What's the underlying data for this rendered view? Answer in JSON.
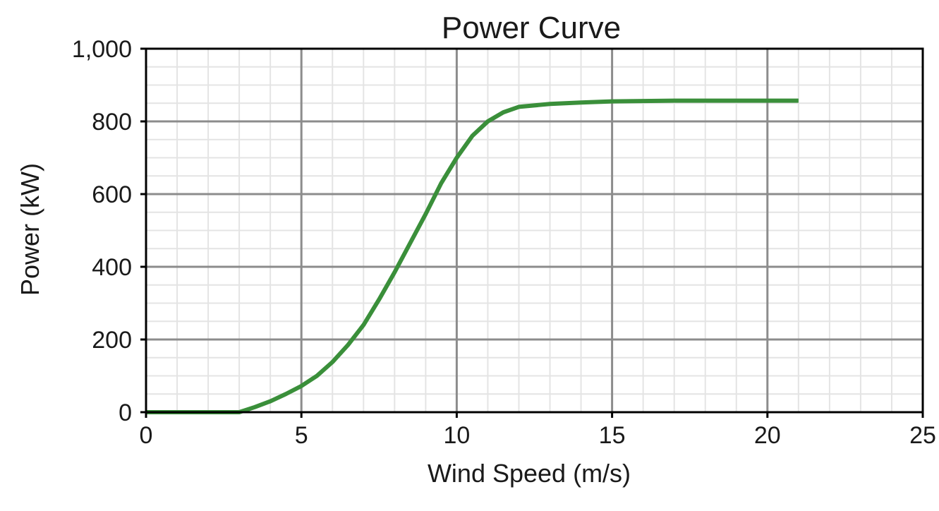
{
  "chart_data": {
    "type": "line",
    "title": "Power Curve",
    "xlabel": "Wind Speed (m/s)",
    "ylabel": "Power (kW)",
    "xlim": [
      0,
      25
    ],
    "ylim": [
      0,
      1000
    ],
    "x_ticks": [
      0,
      5,
      10,
      15,
      20,
      25
    ],
    "y_ticks": [
      0,
      200,
      400,
      600,
      800,
      1000
    ],
    "x_tick_labels": [
      "0",
      "5",
      "10",
      "15",
      "20",
      "25"
    ],
    "y_tick_labels": [
      "0",
      "200",
      "400",
      "600",
      "800",
      "1,000"
    ],
    "grid": true,
    "minor_grid": true,
    "legend": "none",
    "series": [
      {
        "color": "#3a8f3a",
        "x": [
          0,
          1,
          2,
          3,
          3.5,
          4,
          4.5,
          5,
          5.5,
          6,
          6.5,
          7,
          7.5,
          8,
          8.5,
          9,
          9.5,
          10,
          10.5,
          11,
          11.5,
          12,
          13,
          14,
          15,
          16,
          17,
          18,
          19,
          20,
          21
        ],
        "y": [
          0,
          0,
          0,
          0,
          14,
          30,
          50,
          72,
          100,
          138,
          185,
          240,
          310,
          385,
          465,
          545,
          630,
          700,
          760,
          800,
          825,
          840,
          848,
          852,
          855,
          856,
          857,
          857,
          857,
          857,
          857
        ]
      }
    ]
  }
}
